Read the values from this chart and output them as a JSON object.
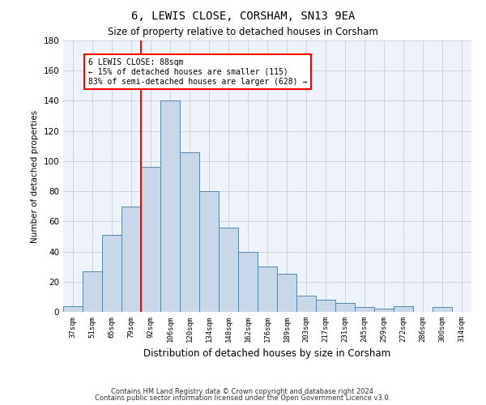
{
  "title_line1": "6, LEWIS CLOSE, CORSHAM, SN13 9EA",
  "title_line2": "Size of property relative to detached houses in Corsham",
  "xlabel": "Distribution of detached houses by size in Corsham",
  "ylabel": "Number of detached properties",
  "categories": [
    "37sqm",
    "51sqm",
    "65sqm",
    "79sqm",
    "92sqm",
    "106sqm",
    "120sqm",
    "134sqm",
    "148sqm",
    "162sqm",
    "176sqm",
    "189sqm",
    "203sqm",
    "217sqm",
    "231sqm",
    "245sqm",
    "259sqm",
    "272sqm",
    "286sqm",
    "300sqm",
    "314sqm"
  ],
  "values": [
    4,
    27,
    51,
    70,
    96,
    140,
    106,
    80,
    56,
    40,
    30,
    25,
    11,
    8,
    6,
    3,
    2,
    4,
    0,
    3,
    0
  ],
  "bar_color": "#c8d8e8",
  "bar_edge_color": "#5588aa",
  "vline_color": "red",
  "annotation_text": "6 LEWIS CLOSE: 88sqm\n← 15% of detached houses are smaller (115)\n83% of semi-detached houses are larger (628) →",
  "annotation_box_color": "white",
  "annotation_box_edge": "red",
  "ylim": [
    0,
    180
  ],
  "yticks": [
    0,
    20,
    40,
    60,
    80,
    100,
    120,
    140,
    160,
    180
  ],
  "background_color": "#eef2fb",
  "grid_color": "#cccccc",
  "footer_line1": "Contains HM Land Registry data © Crown copyright and database right 2024.",
  "footer_line2": "Contains public sector information licensed under the Open Government Licence v3.0."
}
